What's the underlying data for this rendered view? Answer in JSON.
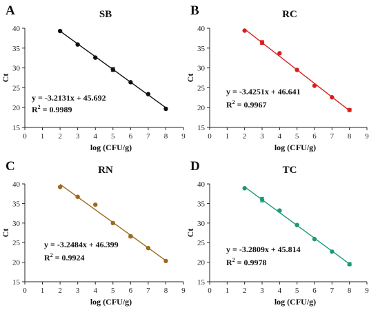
{
  "chart_data": [
    {
      "letter": "A",
      "title": "SB",
      "type": "scatter",
      "color": "#111111",
      "xlabel": "log (CFU/g)",
      "ylabel": "Ct",
      "xlim": [
        0,
        9
      ],
      "ylim": [
        15,
        40
      ],
      "xticks": [
        "0",
        "1",
        "2",
        "3",
        "4",
        "5",
        "6",
        "7",
        "8",
        "9"
      ],
      "yticks": [
        "15",
        "20",
        "25",
        "30",
        "35",
        "40"
      ],
      "x": [
        2,
        3,
        4,
        5,
        6,
        7,
        8
      ],
      "y": [
        39.3,
        35.9,
        32.6,
        29.6,
        26.4,
        23.4,
        19.7
      ],
      "err": [
        0.1,
        0.1,
        0.1,
        0.5,
        0.1,
        0.1,
        0.1
      ],
      "fit": {
        "slope": -3.2131,
        "intercept": 45.692
      },
      "equation": "y = -3.2131x + 45.692",
      "r2_prefix": "R",
      "r2_sup": "2",
      "r2_value": " = 0.9989"
    },
    {
      "letter": "B",
      "title": "RC",
      "type": "scatter",
      "color": "#d62020",
      "xlabel": "log (CFU/g)",
      "ylabel": "Ct",
      "xlim": [
        0,
        9
      ],
      "ylim": [
        15,
        40
      ],
      "xticks": [
        "0",
        "1",
        "2",
        "3",
        "4",
        "5",
        "6",
        "7",
        "8",
        "9"
      ],
      "yticks": [
        "15",
        "20",
        "25",
        "30",
        "35",
        "40"
      ],
      "x": [
        2,
        3,
        4,
        5,
        6,
        7,
        8
      ],
      "y": [
        39.4,
        36.4,
        33.7,
        29.5,
        25.5,
        22.6,
        19.4
      ],
      "err": [
        0.1,
        0.5,
        0.1,
        0.1,
        0.1,
        0.1,
        0.4
      ],
      "fit": {
        "slope": -3.4251,
        "intercept": 46.641
      },
      "equation": "y = -3.4251x + 46.641",
      "r2_prefix": "R",
      "r2_sup": "2",
      "r2_value": " = 0.9967"
    },
    {
      "letter": "C",
      "title": "RN",
      "type": "scatter",
      "color": "#9a6a20",
      "xlabel": "log (CFU/g)",
      "ylabel": "Ct",
      "xlim": [
        0,
        9
      ],
      "ylim": [
        15,
        40
      ],
      "xticks": [
        "0",
        "1",
        "2",
        "3",
        "4",
        "5",
        "6",
        "7",
        "8",
        "9"
      ],
      "yticks": [
        "15",
        "20",
        "25",
        "30",
        "35",
        "40"
      ],
      "x": [
        2,
        3,
        4,
        5,
        6,
        7,
        8
      ],
      "y": [
        39.2,
        36.7,
        34.7,
        30.0,
        26.6,
        23.6,
        20.3
      ],
      "err": [
        0.1,
        0.1,
        0.1,
        0.1,
        0.4,
        0.1,
        0.1
      ],
      "fit": {
        "slope": -3.2484,
        "intercept": 46.399
      },
      "equation": "y = -3.2484x + 46.399",
      "r2_prefix": "R",
      "r2_sup": "2",
      "r2_value": " = 0.9924"
    },
    {
      "letter": "D",
      "title": "TC",
      "type": "scatter",
      "color": "#1a9a78",
      "xlabel": "log (CFU/g)",
      "ylabel": "Ct",
      "xlim": [
        0,
        9
      ],
      "ylim": [
        15,
        40
      ],
      "xticks": [
        "0",
        "1",
        "2",
        "3",
        "4",
        "5",
        "6",
        "7",
        "8",
        "9"
      ],
      "yticks": [
        "15",
        "20",
        "25",
        "30",
        "35",
        "40"
      ],
      "x": [
        2,
        3,
        4,
        5,
        6,
        7,
        8
      ],
      "y": [
        38.9,
        36.0,
        33.2,
        29.5,
        25.9,
        22.7,
        19.5
      ],
      "err": [
        0.1,
        0.6,
        0.2,
        0.1,
        0.1,
        0.1,
        0.4
      ],
      "fit": {
        "slope": -3.2809,
        "intercept": 45.814
      },
      "equation": "y = -3.2809x + 45.814",
      "r2_prefix": "R",
      "r2_sup": "2",
      "r2_value": " = 0.9978"
    }
  ]
}
